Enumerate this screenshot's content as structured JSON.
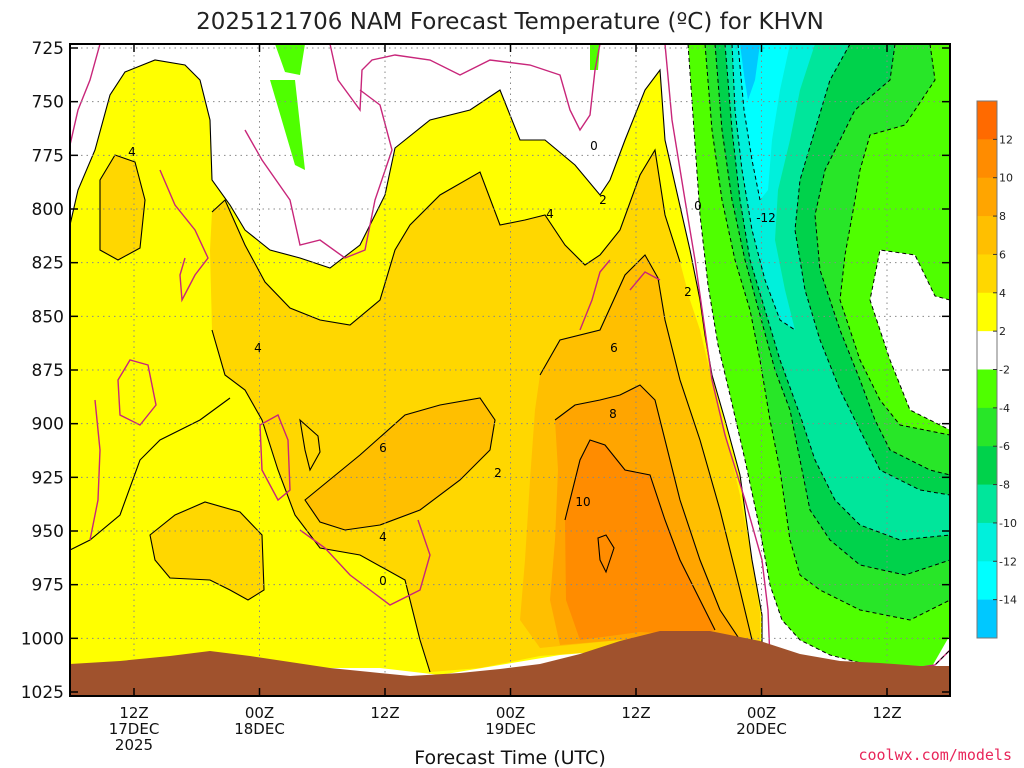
{
  "chart_data": {
    "type": "heatmap",
    "title": "2025121706 NAM Forecast Temperature (ºC) for KHVN",
    "xlabel": "Forecast Time (UTC)",
    "ylabel": "",
    "y_ticks": [
      "725",
      "750",
      "775",
      "800",
      "825",
      "850",
      "875",
      "900",
      "925",
      "950",
      "975",
      "1000",
      "1025"
    ],
    "x_ticks": [
      {
        "lines": [
          "12Z",
          "17DEC",
          "2025"
        ]
      },
      {
        "lines": [
          "00Z",
          "18DEC"
        ]
      },
      {
        "lines": [
          "12Z"
        ]
      },
      {
        "lines": [
          "00Z",
          "19DEC"
        ]
      },
      {
        "lines": [
          "12Z"
        ]
      },
      {
        "lines": [
          "00Z",
          "20DEC"
        ]
      },
      {
        "lines": [
          "12Z"
        ]
      }
    ],
    "colorbar": {
      "labels": [
        "12",
        "10",
        "8",
        "6",
        "4",
        "2",
        "-2",
        "-4",
        "-6",
        "-8",
        "-10",
        "-12",
        "-14"
      ],
      "colors": [
        "#ff6a00",
        "#ff8c00",
        "#ffa500",
        "#ffbf00",
        "#ffd700",
        "#ffff00",
        "#ffffff",
        "#4fff00",
        "#28e628",
        "#00d24b",
        "#00e69b",
        "#00f0dc",
        "#00ffff",
        "#00c8ff"
      ]
    },
    "contour_labels": [
      "4",
      "4",
      "6",
      "6",
      "8",
      "10",
      "4",
      "2",
      "0",
      "0",
      "2",
      "4",
      "2",
      "0",
      "-12"
    ],
    "credit": "coolwx.com/models",
    "credit_color": "#e8265a",
    "terrain_color": "#a0522d"
  }
}
